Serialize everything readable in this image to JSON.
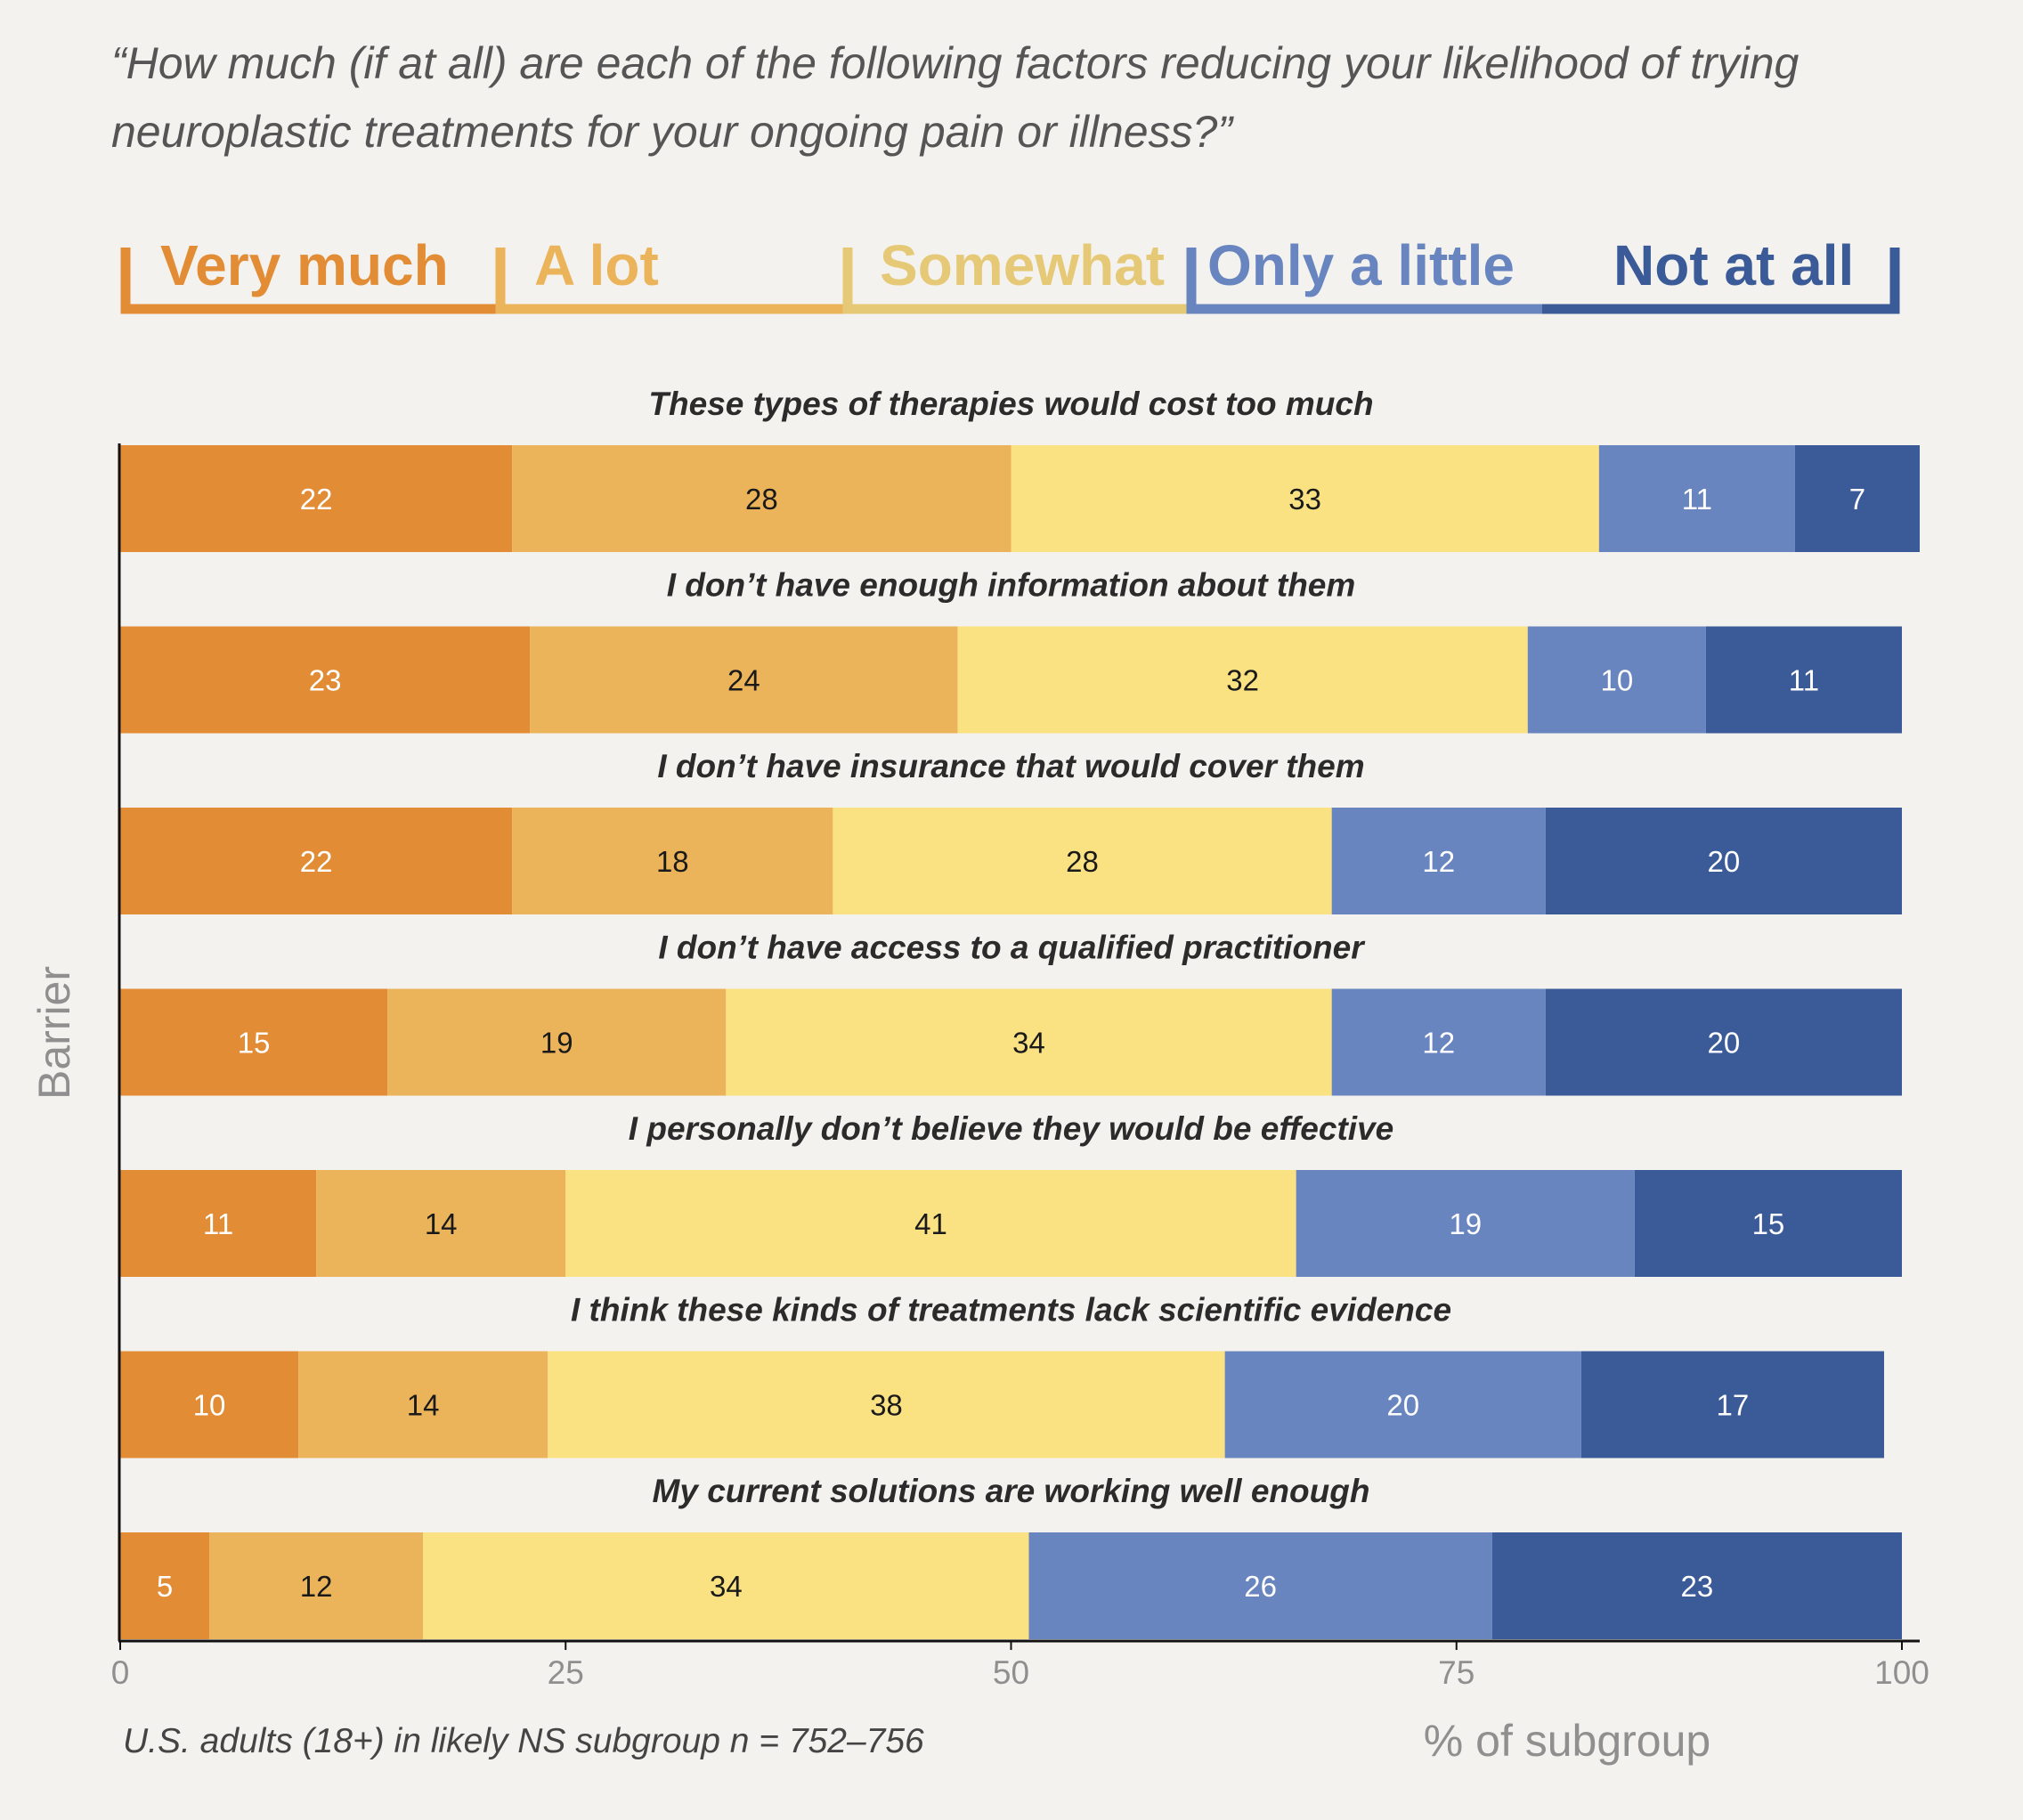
{
  "chart_data": {
    "type": "bar",
    "orientation": "horizontal",
    "stacked": true,
    "question": "“How much (if at all) are each of the following factors reducing your likelihood of trying neuroplastic treatments for your ongoing pain or illness?”",
    "question_lines": [
      "“How much (if at all) are each of the following factors reducing your likelihood of trying",
      "neuroplastic treatments for your ongoing pain or illness?”"
    ],
    "categories": [
      "These types of therapies would cost too much",
      "I don’t have enough information about them",
      "I don’t have insurance that would cover them",
      "I don’t have access to a qualified practitioner",
      "I personally don’t believe they would be effective",
      "I think these kinds of treatments lack scientific evidence",
      "My current solutions are working well enough"
    ],
    "series": [
      {
        "name": "Very much",
        "color": "#e28c35",
        "label_color": "#ffffff",
        "legend_color": "#e28c35",
        "values": [
          22,
          23,
          22,
          15,
          11,
          10,
          5
        ]
      },
      {
        "name": "A lot",
        "color": "#ecb45a",
        "label_color": "#1a1a1a",
        "legend_color": "#ecb45a",
        "values": [
          28,
          24,
          18,
          19,
          14,
          14,
          12
        ]
      },
      {
        "name": "Somewhat",
        "color": "#fae283",
        "label_color": "#1a1a1a",
        "legend_color": "#e5c977",
        "values": [
          33,
          32,
          28,
          34,
          41,
          38,
          34
        ]
      },
      {
        "name": "Only a little",
        "color": "#6885bf",
        "label_color": "#ffffff",
        "legend_color": "#6885bf",
        "values": [
          11,
          10,
          12,
          12,
          19,
          20,
          26
        ]
      },
      {
        "name": "Not at all",
        "color": "#3a5a98",
        "label_color": "#ffffff",
        "legend_color": "#3a5a98",
        "values": [
          7,
          11,
          20,
          20,
          15,
          17,
          23
        ]
      }
    ],
    "xlabel": "% of subgroup",
    "ylabel": "Barrier",
    "xlim": [
      0,
      100
    ],
    "xticks": [
      0,
      25,
      50,
      75,
      100
    ],
    "grid": false,
    "legend": "top",
    "note": "U.S. adults (18+) in likely NS subgroup n = 752–756",
    "background_color": "#f4f2ee"
  }
}
